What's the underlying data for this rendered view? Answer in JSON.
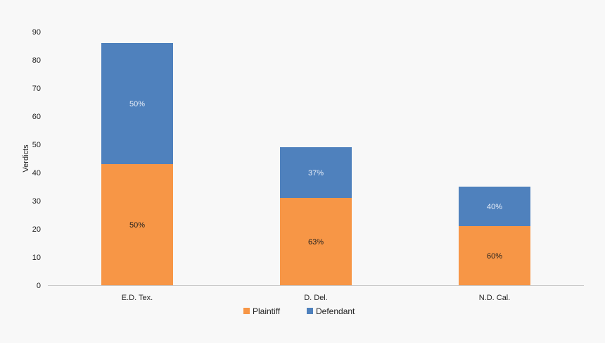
{
  "chart_data": {
    "type": "bar",
    "stacked": true,
    "categories": [
      "E.D. Tex.",
      "D. Del.",
      "N.D. Cal."
    ],
    "series": [
      {
        "name": "Plaintiff",
        "color": "#f79646",
        "values": [
          43,
          31,
          21
        ],
        "labels": [
          "50%",
          "63%",
          "60%"
        ],
        "label_color": "#1f1f1f"
      },
      {
        "name": "Defendant",
        "color": "#4f81bd",
        "values": [
          43,
          18,
          14
        ],
        "labels": [
          "50%",
          "37%",
          "40%"
        ],
        "label_color": "#e8eef8"
      }
    ],
    "title": "",
    "xlabel": "",
    "ylabel": "Verdicts",
    "ylim": [
      0,
      90
    ],
    "yticks": [
      0,
      10,
      20,
      30,
      40,
      50,
      60,
      70,
      80,
      90
    ],
    "grid": false,
    "legend": "bottom"
  }
}
